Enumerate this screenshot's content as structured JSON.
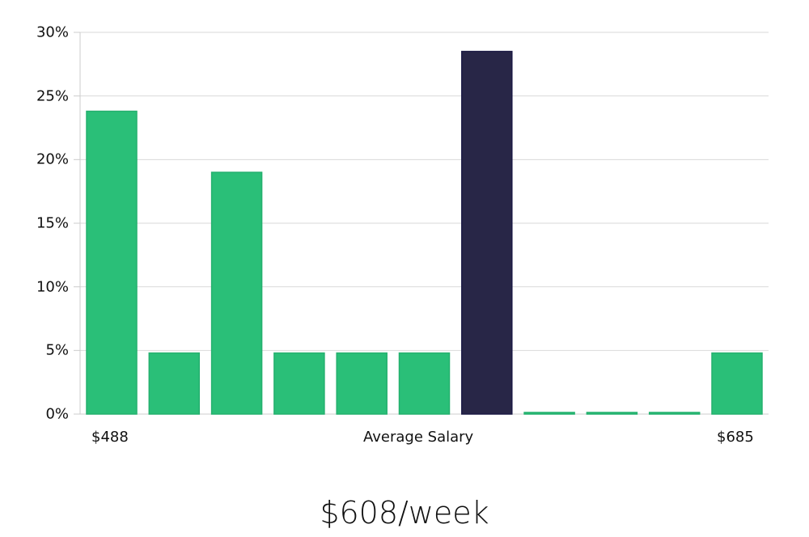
{
  "chart_data": {
    "type": "bar",
    "title": "",
    "xlabel": "Average Salary",
    "ylabel": "",
    "ylim": [
      0,
      30
    ],
    "yticks": [
      "0%",
      "5%",
      "10%",
      "15%",
      "20%",
      "25%",
      "30%"
    ],
    "x_edge_labels": {
      "left": "$488",
      "right": "$685"
    },
    "categories": [
      "bin1",
      "bin2",
      "bin3",
      "bin4",
      "bin5",
      "bin6",
      "bin7",
      "bin8",
      "bin9",
      "bin10",
      "bin11"
    ],
    "values": [
      23.8,
      4.8,
      19.0,
      4.8,
      4.8,
      4.8,
      28.5,
      0,
      0,
      0,
      4.8
    ],
    "highlight_index": 6,
    "grid": true,
    "legend": null
  },
  "colors": {
    "bar": "#2abf78",
    "bar_edge": "#24b06e",
    "highlight": "#282647",
    "highlight_edge": "#1c1a45",
    "grid": "#d9d9d9",
    "axis": "#cccccc"
  },
  "labels": {
    "x_axis": "Average Salary",
    "x_min": "$488",
    "x_max": "$685",
    "headline": "$608/week"
  }
}
